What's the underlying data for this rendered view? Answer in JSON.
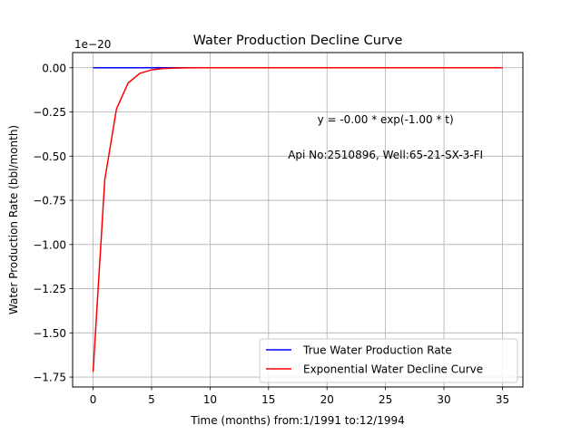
{
  "chart_data": {
    "type": "line",
    "title": "Water Production Decline Curve",
    "xlabel": "Time (months) from:1/1991 to:12/1994",
    "ylabel": "Water Production Rate (bbl/month)",
    "offset_text": "1e−20",
    "xlim": [
      -1.75,
      36.75
    ],
    "ylim": [
      -1.806,
      0.086
    ],
    "grid": true,
    "legend_position": "lower-right",
    "x_ticks": [
      0,
      5,
      10,
      15,
      20,
      25,
      30,
      35
    ],
    "x_tick_labels": [
      "0",
      "5",
      "10",
      "15",
      "20",
      "25",
      "30",
      "35"
    ],
    "y_ticks": [
      0.0,
      -0.25,
      -0.5,
      -0.75,
      -1.0,
      -1.25,
      -1.5,
      -1.75
    ],
    "y_tick_labels": [
      "0.00",
      "−0.25",
      "−0.50",
      "−0.75",
      "−1.00",
      "−1.25",
      "−1.50",
      "−1.75"
    ],
    "annotations": [
      {
        "text": "y = -0.00 * exp(-1.00 * t)",
        "x": 25.0,
        "y": -0.29
      },
      {
        "text": "Api No:2510896, Well:65-21-SX-3-FI",
        "x": 25.0,
        "y": -0.49
      }
    ],
    "series": [
      {
        "name": "True Water Production Rate",
        "color": "#0000ff",
        "x": [
          0,
          1,
          2,
          3,
          4,
          5,
          6,
          7,
          8,
          9,
          10,
          11,
          12,
          13,
          14,
          15,
          16,
          17,
          18,
          19,
          20,
          21,
          22,
          23,
          24,
          25,
          26,
          27,
          28,
          29,
          30,
          31,
          32,
          33,
          34,
          35
        ],
        "y": [
          0,
          0,
          0,
          0,
          0,
          0,
          0,
          0,
          0,
          0,
          0,
          0,
          0,
          0,
          0,
          0,
          0,
          0,
          0,
          0,
          0,
          0,
          0,
          0,
          0,
          0,
          0,
          0,
          0,
          0,
          0,
          0,
          0,
          0,
          0,
          0
        ]
      },
      {
        "name": "Exponential Water Decline Curve",
        "color": "#ff0000",
        "x": [
          0,
          1,
          2,
          3,
          4,
          5,
          6,
          7,
          8,
          9,
          10,
          11,
          12,
          13,
          14,
          15,
          16,
          17,
          18,
          19,
          20,
          21,
          22,
          23,
          24,
          25,
          26,
          27,
          28,
          29,
          30,
          31,
          32,
          33,
          34,
          35
        ],
        "y": [
          -1.72,
          -0.633,
          -0.233,
          -0.0857,
          -0.0315,
          -0.0116,
          -0.00426,
          -0.00157,
          -0.000577,
          -0.000212,
          -7.81e-05,
          -2.87e-05,
          -1.06e-05,
          -3.9e-06,
          -1.4e-06,
          -5e-07,
          -2e-07,
          -1e-07,
          0,
          0,
          0,
          0,
          0,
          0,
          0,
          0,
          0,
          0,
          0,
          0,
          0,
          0,
          0,
          0,
          0,
          0
        ]
      }
    ]
  }
}
